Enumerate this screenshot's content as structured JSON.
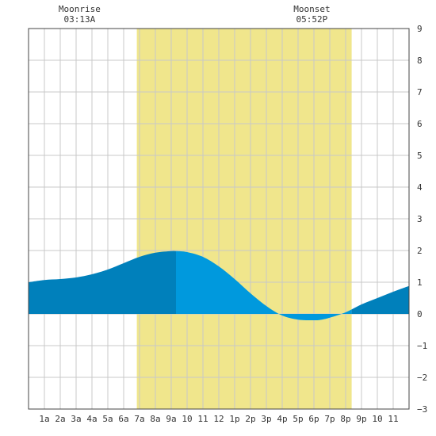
{
  "chart_data": {
    "type": "area",
    "title": "",
    "xlabel": "",
    "ylabel": "",
    "xlim": [
      0,
      24
    ],
    "ylim": [
      -3,
      9
    ],
    "y_ticks": [
      -3,
      -2,
      -1,
      0,
      1,
      2,
      3,
      4,
      5,
      6,
      7,
      8,
      9
    ],
    "y_tick_labels": [
      "−3",
      "−2",
      "−1",
      "0",
      "1",
      "2",
      "3",
      "4",
      "5",
      "6",
      "7",
      "8",
      "9"
    ],
    "x_ticks": [
      1,
      2,
      3,
      4,
      5,
      6,
      7,
      8,
      9,
      10,
      11,
      12,
      13,
      14,
      15,
      16,
      17,
      18,
      19,
      20,
      21,
      22,
      23
    ],
    "x_tick_labels": [
      "1a",
      "2a",
      "3a",
      "4a",
      "5a",
      "6a",
      "7a",
      "8a",
      "9a",
      "10",
      "11",
      "12",
      "1p",
      "2p",
      "3p",
      "4p",
      "5p",
      "6p",
      "7p",
      "8p",
      "9p",
      "10",
      "11"
    ],
    "grid": true,
    "daylight": {
      "start": 6.83,
      "end": 20.38
    },
    "moonrise": {
      "label": "Moonrise",
      "time": "03:13A",
      "hour": 3.22
    },
    "moonset": {
      "label": "Moonset",
      "time": "05:52P",
      "hour": 17.87
    },
    "series": [
      {
        "x": [
          0,
          1,
          2,
          3,
          4,
          5,
          6,
          7,
          8,
          9,
          9.3,
          10,
          11,
          12,
          13,
          14,
          15,
          16,
          17,
          18,
          18.5,
          19,
          20,
          21,
          22,
          23,
          24
        ],
        "y": [
          1.0,
          1.07,
          1.1,
          1.15,
          1.25,
          1.4,
          1.6,
          1.8,
          1.93,
          1.98,
          1.98,
          1.95,
          1.8,
          1.5,
          1.1,
          0.65,
          0.25,
          -0.05,
          -0.18,
          -0.2,
          -0.18,
          -0.12,
          0.05,
          0.3,
          0.5,
          0.7,
          0.88
        ]
      }
    ],
    "colors": {
      "daylight": "#f0e68c",
      "tide_day": "#0099dd",
      "tide_night": "#0080bb",
      "grid": "#c8c8c8",
      "axis": "#444444"
    }
  }
}
